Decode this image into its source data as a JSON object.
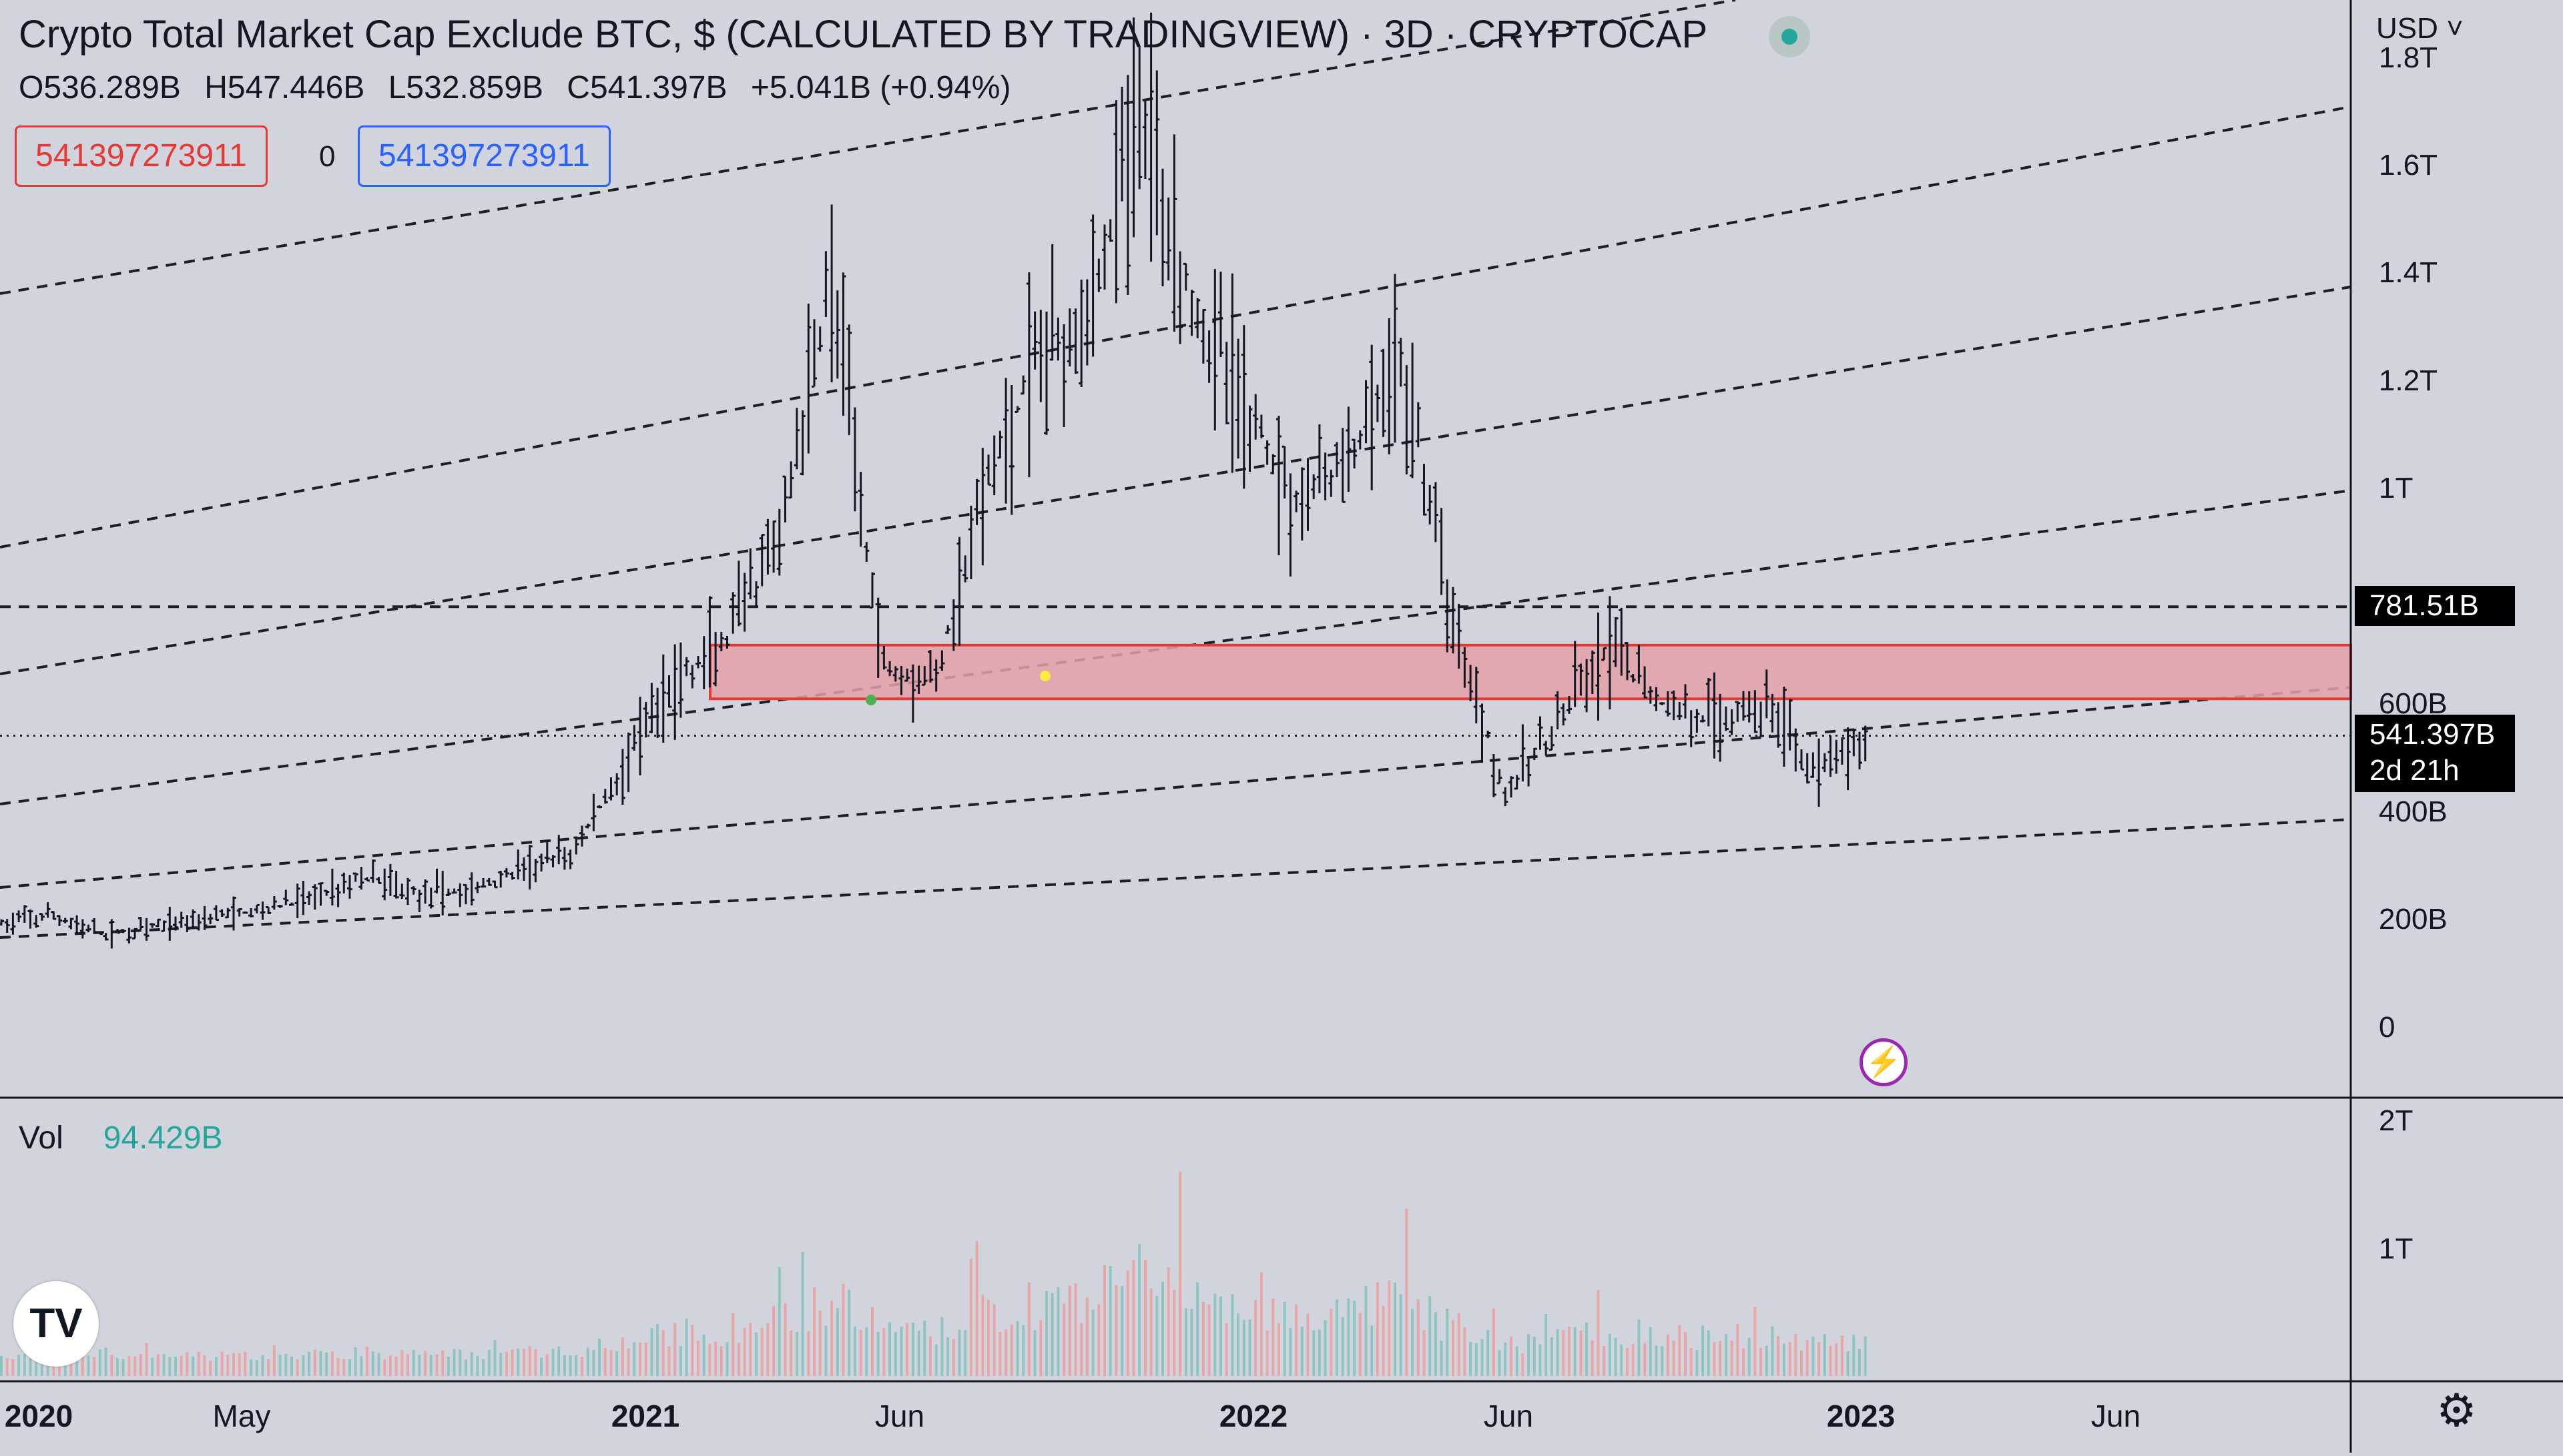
{
  "header": {
    "title": "Crypto Total Market Cap Exclude BTC, $ (CALCULATED BY TRADINGVIEW) · 3D · CRYPTOCAP",
    "ohlc": {
      "o": "O536.289B",
      "h": "H547.446B",
      "l": "L532.859B",
      "c": "C541.397B",
      "change": "+5.041B (+0.94%)"
    }
  },
  "order_boxes": {
    "sell": "541397273911",
    "spread": "0",
    "buy": "541397273911"
  },
  "currency_selector": "USD ˅",
  "price_labels": {
    "level_line": "781.51B",
    "current_price": "541.397B",
    "countdown": "2d 21h"
  },
  "volume_pane": {
    "label": "Vol",
    "value": "94.429B"
  },
  "logo_text": "TV",
  "icons": {
    "live": "live-dot-icon",
    "flash": "lightning-icon",
    "settings": "gear-icon",
    "logo": "tradingview-logo-icon"
  },
  "colors": {
    "background": "#d1d4dc",
    "up_volume": "#8fc5c0",
    "down_volume": "#e8a6a6",
    "zone_fill": "#e5a0a8",
    "zone_border": "#e53935"
  },
  "chart_data": {
    "type": "ohlc",
    "title": "Crypto Total Market Cap Exclude BTC, $ (CALCULATED BY TRADINGVIEW) · 3D · CRYPTOCAP",
    "xlabel": "",
    "ylabel": "",
    "y_ticks": [
      "0",
      "200B",
      "400B",
      "600B",
      "1T",
      "1.2T",
      "1.4T",
      "1.6T",
      "1.8T"
    ],
    "x_ticks": [
      "2020",
      "May",
      "2021",
      "Jun",
      "2022",
      "Jun",
      "2023",
      "Jun"
    ],
    "volume_ticks": [
      "1T",
      "2T"
    ],
    "ylim_billion": [
      0,
      1800
    ],
    "price_path_billion": [
      [
        "2020-01",
        190
      ],
      [
        "2020-02",
        205
      ],
      [
        "2020-03",
        170
      ],
      [
        "2020-04",
        185
      ],
      [
        "2020-05",
        205
      ],
      [
        "2020-06",
        215
      ],
      [
        "2020-07",
        240
      ],
      [
        "2020-08",
        280
      ],
      [
        "2020-09",
        250
      ],
      [
        "2020-10",
        250
      ],
      [
        "2020-11",
        290
      ],
      [
        "2020-12",
        320
      ],
      [
        "2021-01",
        480
      ],
      [
        "2021-02",
        640
      ],
      [
        "2021-03",
        710
      ],
      [
        "2021-04",
        900
      ],
      [
        "2021-05",
        1400
      ],
      [
        "2021-06",
        680
      ],
      [
        "2021-07",
        640
      ],
      [
        "2021-08",
        1000
      ],
      [
        "2021-09",
        1250
      ],
      [
        "2021-10",
        1350
      ],
      [
        "2021-11",
        1700
      ],
      [
        "2021-12",
        1350
      ],
      [
        "2022-01",
        1150
      ],
      [
        "2022-02",
        980
      ],
      [
        "2022-03",
        1050
      ],
      [
        "2022-04",
        1230
      ],
      [
        "2022-05",
        760
      ],
      [
        "2022-06",
        430
      ],
      [
        "2022-07",
        560
      ],
      [
        "2022-08",
        700
      ],
      [
        "2022-09",
        600
      ],
      [
        "2022-10",
        570
      ],
      [
        "2022-11",
        600
      ],
      [
        "2022-12",
        470
      ],
      [
        "2023-01",
        541
      ]
    ],
    "horizontal_levels_billion": [
      781.51,
      541.397
    ],
    "zone_billion": [
      610,
      710
    ],
    "current_price_billion": 541.397,
    "last_volume_billion": 94.429
  }
}
